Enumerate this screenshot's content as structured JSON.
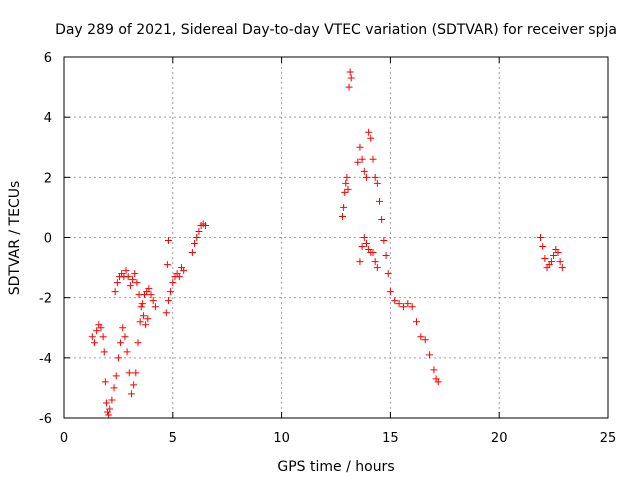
{
  "chart_data": {
    "type": "scatter",
    "title": "Day 289 of 2021, Sidereal Day-to-day VTEC variation (SDTVAR) for receiver spja",
    "xlabel": "GPS time / hours",
    "ylabel": "SDTVAR / TECUs",
    "xlim": [
      0,
      25
    ],
    "ylim": [
      -6,
      6
    ],
    "xticks": [
      0,
      5,
      10,
      15,
      20,
      25
    ],
    "yticks": [
      -6,
      -4,
      -2,
      0,
      2,
      4,
      6
    ],
    "grid": true,
    "legend": "none",
    "marker": "plus",
    "color": "#ff0000",
    "series": [
      {
        "name": "SDTVAR",
        "x": [
          1.3,
          1.4,
          1.5,
          1.6,
          1.7,
          1.8,
          1.85,
          1.9,
          1.95,
          2.0,
          2.05,
          2.1,
          2.2,
          2.3,
          2.4,
          2.5,
          2.6,
          2.7,
          2.8,
          2.9,
          3.0,
          3.1,
          3.2,
          3.3,
          3.4,
          3.5,
          3.6,
          3.7,
          3.8,
          3.9,
          4.0,
          4.1,
          4.2,
          4.7,
          4.8,
          4.9,
          5.0,
          5.1,
          5.2,
          5.3,
          5.4,
          5.5,
          5.9,
          6.0,
          6.1,
          6.2,
          6.3,
          6.4,
          6.5,
          2.35,
          2.45,
          2.55,
          2.65,
          2.75,
          2.85,
          2.95,
          3.05,
          3.15,
          3.25,
          3.35,
          3.45,
          3.55,
          3.65,
          3.75,
          3.85,
          4.75,
          4.8,
          12.8,
          12.85,
          12.9,
          12.95,
          13.0,
          13.05,
          13.1,
          13.15,
          13.2,
          13.5,
          13.6,
          13.7,
          13.8,
          13.9,
          14.0,
          14.1,
          14.2,
          14.3,
          14.4,
          14.5,
          14.6,
          14.7,
          14.8,
          14.9,
          15.0,
          15.2,
          15.4,
          15.6,
          15.8,
          16.0,
          16.2,
          16.4,
          16.6,
          16.8,
          17.0,
          17.1,
          17.2,
          13.6,
          13.7,
          13.8,
          13.9,
          14.0,
          14.1,
          14.2,
          14.3,
          14.4,
          21.9,
          22.0,
          22.1,
          22.2,
          22.3,
          22.4,
          22.5,
          22.6,
          22.7,
          22.8,
          22.9
        ],
        "y": [
          -3.3,
          -3.5,
          -3.1,
          -2.9,
          -3.0,
          -3.3,
          -3.8,
          -4.8,
          -5.5,
          -5.8,
          -5.9,
          -5.7,
          -5.4,
          -5.0,
          -4.6,
          -4.0,
          -3.5,
          -3.0,
          -3.3,
          -3.8,
          -4.5,
          -5.2,
          -4.9,
          -4.5,
          -3.5,
          -2.8,
          -2.2,
          -1.9,
          -1.8,
          -1.7,
          -1.9,
          -2.1,
          -2.3,
          -2.5,
          -2.1,
          -1.8,
          -1.5,
          -1.3,
          -1.2,
          -1.3,
          -1.0,
          -1.1,
          -0.5,
          -0.2,
          0.0,
          0.2,
          0.4,
          0.45,
          0.4,
          -1.8,
          -1.5,
          -1.3,
          -1.2,
          -1.3,
          -1.1,
          -1.3,
          -1.6,
          -1.4,
          -1.2,
          -1.5,
          -1.9,
          -2.3,
          -2.6,
          -2.9,
          -2.7,
          -0.9,
          -0.1,
          0.7,
          1.0,
          1.5,
          1.8,
          2.0,
          1.6,
          5.0,
          5.5,
          5.3,
          2.5,
          3.0,
          2.6,
          2.2,
          2.0,
          3.5,
          3.3,
          2.6,
          2.0,
          1.8,
          1.2,
          0.6,
          -0.1,
          -0.6,
          -1.2,
          -1.8,
          -2.1,
          -2.2,
          -2.3,
          -2.2,
          -2.3,
          -2.8,
          -3.3,
          -3.4,
          -3.9,
          -4.4,
          -4.7,
          -4.8,
          -0.8,
          -0.3,
          0.0,
          -0.2,
          -0.4,
          -0.5,
          -0.5,
          -0.8,
          -1.0,
          0.0,
          -0.3,
          -0.7,
          -1.0,
          -0.9,
          -0.8,
          -0.6,
          -0.4,
          -0.5,
          -0.8,
          -1.0
        ]
      }
    ]
  }
}
